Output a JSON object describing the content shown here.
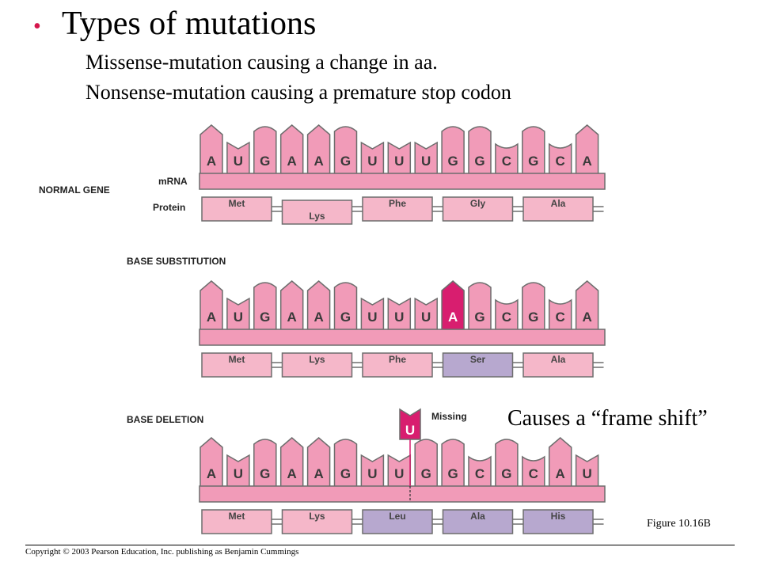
{
  "slide": {
    "bullet": "•",
    "title": "Types of mutations",
    "lines": [
      "Missense-mutation causing a change in aa.",
      "Nonsense-mutation causing a premature stop codon"
    ],
    "frame_shift_note": "Causes a “frame shift”",
    "figure": "Figure 10.16B",
    "copyright": "Copyright © 2003 Pearson Education, Inc. publishing as Benjamin Cummings"
  },
  "colors": {
    "base_fill": "#f19bb8",
    "stroke": "#6d6d6d",
    "mutant_fill": "#d81e6f",
    "protein_normal": "#f5b7c9",
    "protein_changed": "#b7a8cf",
    "bullet": "#d5174c"
  },
  "labels": {
    "normal_gene": "NORMAL GENE",
    "mrna": "mRNA",
    "protein": "Protein",
    "base_substitution": "BASE SUBSTITUTION",
    "base_deletion": "BASE DELETION",
    "missing": "Missing"
  },
  "panels": [
    {
      "bases": [
        "A",
        "U",
        "G",
        "A",
        "A",
        "G",
        "U",
        "U",
        "U",
        "G",
        "G",
        "C",
        "G",
        "C",
        "A"
      ],
      "mutated_index": -1,
      "amino_acids": [
        {
          "name": "Met",
          "changed": false
        },
        {
          "name": "Lys",
          "changed": false,
          "offset": true
        },
        {
          "name": "Phe",
          "changed": false
        },
        {
          "name": "Gly",
          "changed": false
        },
        {
          "name": "Ala",
          "changed": false
        }
      ]
    },
    {
      "bases": [
        "A",
        "U",
        "G",
        "A",
        "A",
        "G",
        "U",
        "U",
        "U",
        "A",
        "G",
        "C",
        "G",
        "C",
        "A"
      ],
      "mutated_index": 9,
      "amino_acids": [
        {
          "name": "Met",
          "changed": false
        },
        {
          "name": "Lys",
          "changed": false
        },
        {
          "name": "Phe",
          "changed": false
        },
        {
          "name": "Ser",
          "changed": true
        },
        {
          "name": "Ala",
          "changed": false
        }
      ]
    },
    {
      "bases": [
        "A",
        "U",
        "G",
        "A",
        "A",
        "G",
        "U",
        "U",
        "G",
        "G",
        "C",
        "G",
        "C",
        "A",
        "U"
      ],
      "mutated_index": -1,
      "missing_base": "U",
      "amino_acids": [
        {
          "name": "Met",
          "changed": false
        },
        {
          "name": "Lys",
          "changed": false
        },
        {
          "name": "Leu",
          "changed": true
        },
        {
          "name": "Ala",
          "changed": true
        },
        {
          "name": "His",
          "changed": true
        }
      ]
    }
  ]
}
